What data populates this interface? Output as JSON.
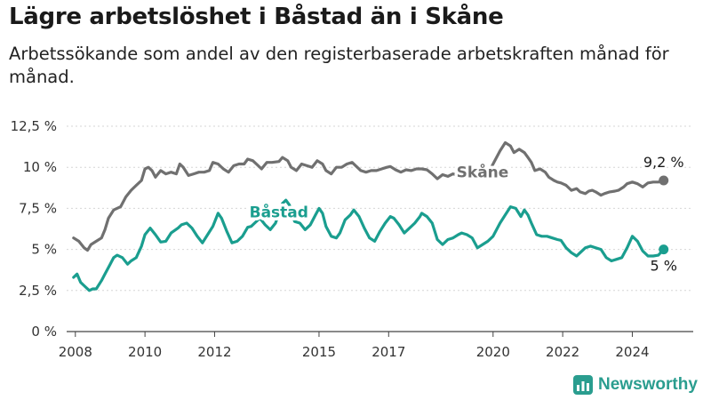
{
  "header": {
    "title": "Lägre arbetslöshet i Båstad än i Skåne",
    "subtitle": "Arbetssökande som andel av den registerbaserade arbetskraften månad för månad."
  },
  "brand": {
    "name": "Newsworthy",
    "icon": "newsworthy-logo-icon",
    "color": "#2a9d8f"
  },
  "chart_data": {
    "type": "line",
    "title": "Lägre arbetslöshet i Båstad än i Skåne",
    "subtitle": "Arbetssökande som andel av den registerbaserade arbetskraften månad för månad.",
    "xlabel": "",
    "ylabel": "",
    "xlim": [
      2007.75,
      2025.75
    ],
    "ylim": [
      0,
      12.5
    ],
    "y_ticks": [
      0,
      2.5,
      5,
      7.5,
      10,
      12.5
    ],
    "y_tick_labels": [
      "0 %",
      "2,5 %",
      "5 %",
      "7,5 %",
      "10 %",
      "12,5 %"
    ],
    "x_ticks": [
      2008,
      2010,
      2012,
      2015,
      2017,
      2020,
      2022,
      2024
    ],
    "x_tick_labels": [
      "2008",
      "2010",
      "2012",
      "2015",
      "2017",
      "2020",
      "2022",
      "2024"
    ],
    "grid": "horizontal",
    "legend": "inline labels",
    "series": [
      {
        "name": "Skåne",
        "color": "#707070",
        "label_at": [
          2018.95,
          9.4
        ],
        "end_label": "9,2 %",
        "points": [
          [
            2007.95,
            5.7
          ],
          [
            2008.1,
            5.5
          ],
          [
            2008.25,
            5.1
          ],
          [
            2008.35,
            4.95
          ],
          [
            2008.45,
            5.3
          ],
          [
            2008.6,
            5.5
          ],
          [
            2008.75,
            5.7
          ],
          [
            2008.85,
            6.2
          ],
          [
            2008.95,
            6.9
          ],
          [
            2009.1,
            7.4
          ],
          [
            2009.3,
            7.6
          ],
          [
            2009.45,
            8.2
          ],
          [
            2009.6,
            8.6
          ],
          [
            2009.75,
            8.9
          ],
          [
            2009.9,
            9.2
          ],
          [
            2010.0,
            9.9
          ],
          [
            2010.1,
            10.0
          ],
          [
            2010.2,
            9.8
          ],
          [
            2010.3,
            9.4
          ],
          [
            2010.45,
            9.8
          ],
          [
            2010.6,
            9.6
          ],
          [
            2010.75,
            9.7
          ],
          [
            2010.9,
            9.6
          ],
          [
            2011.0,
            10.2
          ],
          [
            2011.1,
            10.0
          ],
          [
            2011.25,
            9.5
          ],
          [
            2011.4,
            9.6
          ],
          [
            2011.55,
            9.7
          ],
          [
            2011.7,
            9.7
          ],
          [
            2011.85,
            9.8
          ],
          [
            2011.95,
            10.3
          ],
          [
            2012.1,
            10.2
          ],
          [
            2012.25,
            9.9
          ],
          [
            2012.4,
            9.7
          ],
          [
            2012.55,
            10.1
          ],
          [
            2012.7,
            10.2
          ],
          [
            2012.85,
            10.2
          ],
          [
            2012.95,
            10.5
          ],
          [
            2013.1,
            10.4
          ],
          [
            2013.2,
            10.2
          ],
          [
            2013.35,
            9.9
          ],
          [
            2013.5,
            10.3
          ],
          [
            2013.65,
            10.3
          ],
          [
            2013.85,
            10.35
          ],
          [
            2013.95,
            10.6
          ],
          [
            2014.1,
            10.4
          ],
          [
            2014.2,
            10.0
          ],
          [
            2014.35,
            9.8
          ],
          [
            2014.5,
            10.2
          ],
          [
            2014.65,
            10.1
          ],
          [
            2014.8,
            10.0
          ],
          [
            2014.95,
            10.4
          ],
          [
            2015.1,
            10.2
          ],
          [
            2015.2,
            9.8
          ],
          [
            2015.35,
            9.6
          ],
          [
            2015.5,
            10.0
          ],
          [
            2015.65,
            10.0
          ],
          [
            2015.8,
            10.2
          ],
          [
            2015.95,
            10.3
          ],
          [
            2016.05,
            10.1
          ],
          [
            2016.2,
            9.8
          ],
          [
            2016.35,
            9.7
          ],
          [
            2016.5,
            9.8
          ],
          [
            2016.65,
            9.8
          ],
          [
            2016.8,
            9.9
          ],
          [
            2016.95,
            10.0
          ],
          [
            2017.05,
            10.05
          ],
          [
            2017.2,
            9.85
          ],
          [
            2017.35,
            9.7
          ],
          [
            2017.5,
            9.85
          ],
          [
            2017.65,
            9.8
          ],
          [
            2017.8,
            9.9
          ],
          [
            2017.95,
            9.9
          ],
          [
            2018.1,
            9.85
          ],
          [
            2018.25,
            9.6
          ],
          [
            2018.4,
            9.3
          ],
          [
            2018.55,
            9.55
          ],
          [
            2018.7,
            9.45
          ],
          [
            2018.85,
            9.6
          ],
          [
            2019.0,
            9.5
          ],
          [
            2019.2,
            9.5
          ],
          [
            2019.4,
            9.5
          ],
          [
            2019.55,
            9.6
          ],
          [
            2019.7,
            9.75
          ],
          [
            2019.85,
            9.7
          ],
          [
            2019.95,
            10.0
          ],
          [
            2020.1,
            10.6
          ],
          [
            2020.2,
            11.0
          ],
          [
            2020.35,
            11.5
          ],
          [
            2020.5,
            11.3
          ],
          [
            2020.6,
            10.9
          ],
          [
            2020.75,
            11.1
          ],
          [
            2020.9,
            10.9
          ],
          [
            2021.0,
            10.6
          ],
          [
            2021.1,
            10.3
          ],
          [
            2021.2,
            9.8
          ],
          [
            2021.35,
            9.9
          ],
          [
            2021.5,
            9.7
          ],
          [
            2021.6,
            9.4
          ],
          [
            2021.75,
            9.2
          ],
          [
            2021.85,
            9.1
          ],
          [
            2021.95,
            9.05
          ],
          [
            2022.1,
            8.9
          ],
          [
            2022.25,
            8.6
          ],
          [
            2022.4,
            8.7
          ],
          [
            2022.5,
            8.5
          ],
          [
            2022.65,
            8.4
          ],
          [
            2022.75,
            8.55
          ],
          [
            2022.85,
            8.6
          ],
          [
            2022.95,
            8.5
          ],
          [
            2023.1,
            8.3
          ],
          [
            2023.2,
            8.4
          ],
          [
            2023.35,
            8.5
          ],
          [
            2023.5,
            8.55
          ],
          [
            2023.6,
            8.6
          ],
          [
            2023.75,
            8.8
          ],
          [
            2023.85,
            9.0
          ],
          [
            2024.0,
            9.1
          ],
          [
            2024.15,
            9.0
          ],
          [
            2024.3,
            8.8
          ],
          [
            2024.45,
            9.05
          ],
          [
            2024.6,
            9.1
          ],
          [
            2024.75,
            9.1
          ],
          [
            2024.9,
            9.2
          ]
        ]
      },
      {
        "name": "Båstad",
        "color": "#1a9e8f",
        "label_at": [
          2013.0,
          6.95
        ],
        "end_label": "5 %",
        "points": [
          [
            2007.95,
            3.3
          ],
          [
            2008.05,
            3.5
          ],
          [
            2008.15,
            3.0
          ],
          [
            2008.3,
            2.7
          ],
          [
            2008.4,
            2.5
          ],
          [
            2008.5,
            2.6
          ],
          [
            2008.6,
            2.6
          ],
          [
            2008.75,
            3.1
          ],
          [
            2008.85,
            3.5
          ],
          [
            2009.0,
            4.1
          ],
          [
            2009.1,
            4.5
          ],
          [
            2009.2,
            4.65
          ],
          [
            2009.35,
            4.5
          ],
          [
            2009.5,
            4.1
          ],
          [
            2009.6,
            4.3
          ],
          [
            2009.75,
            4.5
          ],
          [
            2009.9,
            5.2
          ],
          [
            2010.0,
            5.9
          ],
          [
            2010.15,
            6.3
          ],
          [
            2010.3,
            5.9
          ],
          [
            2010.45,
            5.45
          ],
          [
            2010.6,
            5.5
          ],
          [
            2010.75,
            6.0
          ],
          [
            2010.95,
            6.3
          ],
          [
            2011.05,
            6.5
          ],
          [
            2011.2,
            6.6
          ],
          [
            2011.35,
            6.3
          ],
          [
            2011.5,
            5.8
          ],
          [
            2011.65,
            5.4
          ],
          [
            2011.8,
            5.9
          ],
          [
            2011.95,
            6.4
          ],
          [
            2012.1,
            7.2
          ],
          [
            2012.2,
            6.9
          ],
          [
            2012.35,
            6.1
          ],
          [
            2012.5,
            5.4
          ],
          [
            2012.65,
            5.5
          ],
          [
            2012.8,
            5.8
          ],
          [
            2012.95,
            6.35
          ],
          [
            2013.05,
            6.4
          ],
          [
            2013.15,
            6.6
          ],
          [
            2013.3,
            6.9
          ],
          [
            2013.45,
            6.5
          ],
          [
            2013.6,
            6.2
          ],
          [
            2013.75,
            6.6
          ],
          [
            2013.85,
            7.2
          ],
          [
            2013.95,
            7.8
          ],
          [
            2014.05,
            8.0
          ],
          [
            2014.15,
            7.7
          ],
          [
            2014.3,
            6.7
          ],
          [
            2014.45,
            6.6
          ],
          [
            2014.6,
            6.2
          ],
          [
            2014.75,
            6.5
          ],
          [
            2014.9,
            7.1
          ],
          [
            2015.0,
            7.5
          ],
          [
            2015.1,
            7.2
          ],
          [
            2015.2,
            6.4
          ],
          [
            2015.35,
            5.8
          ],
          [
            2015.5,
            5.7
          ],
          [
            2015.6,
            6.0
          ],
          [
            2015.75,
            6.8
          ],
          [
            2015.9,
            7.1
          ],
          [
            2016.0,
            7.4
          ],
          [
            2016.15,
            7.0
          ],
          [
            2016.3,
            6.3
          ],
          [
            2016.45,
            5.7
          ],
          [
            2016.6,
            5.5
          ],
          [
            2016.75,
            6.1
          ],
          [
            2016.9,
            6.6
          ],
          [
            2017.05,
            7.0
          ],
          [
            2017.15,
            6.9
          ],
          [
            2017.3,
            6.5
          ],
          [
            2017.45,
            6.0
          ],
          [
            2017.6,
            6.3
          ],
          [
            2017.75,
            6.6
          ],
          [
            2017.9,
            7.0
          ],
          [
            2017.95,
            7.2
          ],
          [
            2018.1,
            7.0
          ],
          [
            2018.25,
            6.6
          ],
          [
            2018.4,
            5.6
          ],
          [
            2018.55,
            5.3
          ],
          [
            2018.7,
            5.6
          ],
          [
            2018.85,
            5.7
          ],
          [
            2019.0,
            5.9
          ],
          [
            2019.1,
            6.0
          ],
          [
            2019.25,
            5.9
          ],
          [
            2019.4,
            5.7
          ],
          [
            2019.55,
            5.1
          ],
          [
            2019.7,
            5.3
          ],
          [
            2019.85,
            5.5
          ],
          [
            2020.0,
            5.8
          ],
          [
            2020.1,
            6.2
          ],
          [
            2020.2,
            6.6
          ],
          [
            2020.35,
            7.1
          ],
          [
            2020.5,
            7.6
          ],
          [
            2020.65,
            7.5
          ],
          [
            2020.8,
            7.0
          ],
          [
            2020.9,
            7.4
          ],
          [
            2021.0,
            7.1
          ],
          [
            2021.1,
            6.6
          ],
          [
            2021.25,
            5.9
          ],
          [
            2021.4,
            5.8
          ],
          [
            2021.55,
            5.8
          ],
          [
            2021.7,
            5.7
          ],
          [
            2021.85,
            5.6
          ],
          [
            2021.95,
            5.55
          ],
          [
            2022.1,
            5.1
          ],
          [
            2022.25,
            4.8
          ],
          [
            2022.4,
            4.6
          ],
          [
            2022.5,
            4.8
          ],
          [
            2022.65,
            5.1
          ],
          [
            2022.8,
            5.2
          ],
          [
            2022.95,
            5.1
          ],
          [
            2023.1,
            5.0
          ],
          [
            2023.25,
            4.5
          ],
          [
            2023.4,
            4.3
          ],
          [
            2023.55,
            4.4
          ],
          [
            2023.7,
            4.5
          ],
          [
            2023.85,
            5.1
          ],
          [
            2024.0,
            5.8
          ],
          [
            2024.15,
            5.5
          ],
          [
            2024.3,
            4.9
          ],
          [
            2024.45,
            4.6
          ],
          [
            2024.6,
            4.6
          ],
          [
            2024.75,
            4.65
          ],
          [
            2024.9,
            5.0
          ]
        ]
      }
    ]
  }
}
